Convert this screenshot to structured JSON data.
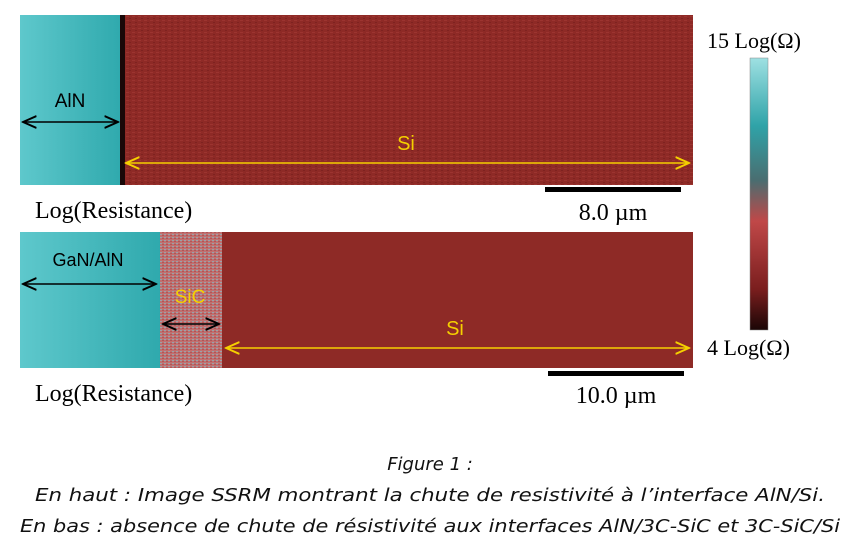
{
  "figure": {
    "top_panel": {
      "left_label": "AlN",
      "right_label": "Si",
      "caption": "Log(Resistance)",
      "scale_bar": "8.0 µm"
    },
    "bottom_panel": {
      "left_label": "GaN/AlN",
      "middle_label": "SiC",
      "right_label": "Si",
      "caption": "Log(Resistance)",
      "scale_bar": "10.0 µm"
    },
    "colorbar": {
      "max_label": "15 Log(Ω)",
      "min_label": "4 Log(Ω)"
    }
  },
  "caption": {
    "title": "Figure 1 :",
    "lines": [
      "En haut : Image SSRM montrant la chute de resistivité à l’interface AlN/Si.",
      "En bas : absence de chute de résistivité aux interfaces AlN/3C-SiC et 3C-SiC/Si"
    ]
  }
}
